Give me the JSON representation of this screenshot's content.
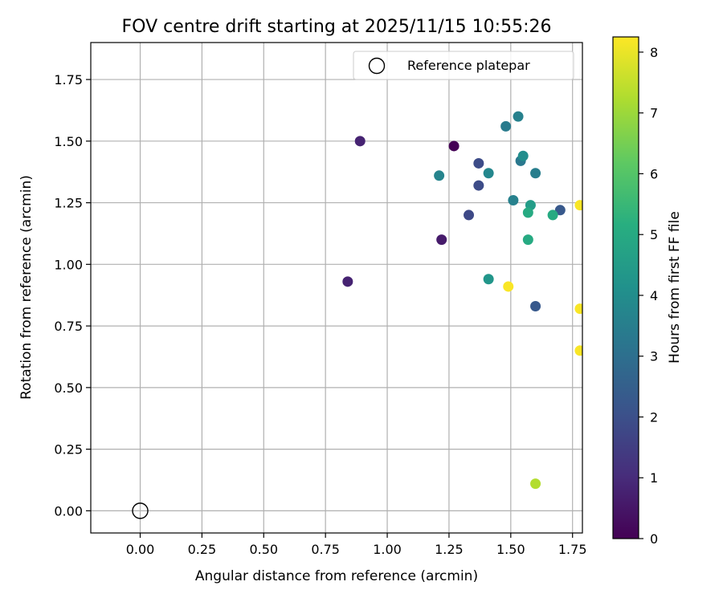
{
  "chart_data": {
    "type": "scatter",
    "title": "FOV centre drift starting at 2025/11/15 10:55:26",
    "xlabel": "Angular distance from reference (arcmin)",
    "ylabel": "Rotation from reference (arcmin)",
    "xlim": [
      -0.2,
      1.79
    ],
    "ylim": [
      -0.09,
      1.9
    ],
    "xticks": [
      "0.00",
      "0.25",
      "0.50",
      "0.75",
      "1.00",
      "1.25",
      "1.50",
      "1.75"
    ],
    "xtick_values": [
      0,
      0.25,
      0.5,
      0.75,
      1.0,
      1.25,
      1.5,
      1.75
    ],
    "yticks": [
      "0.00",
      "0.25",
      "0.50",
      "0.75",
      "1.00",
      "1.25",
      "1.50",
      "1.75"
    ],
    "ytick_values": [
      0,
      0.25,
      0.5,
      0.75,
      1.0,
      1.25,
      1.5,
      1.75
    ],
    "grid": true,
    "legend": {
      "position": "top-right",
      "entries": [
        "Reference platepar"
      ]
    },
    "reference_point": {
      "x": 0.0,
      "y": 0.0
    },
    "colorbar": {
      "label": "Hours from first FF file",
      "min": 0,
      "max": 8.25,
      "ticks": [
        "0",
        "1",
        "2",
        "3",
        "4",
        "5",
        "6",
        "7",
        "8"
      ],
      "tick_values": [
        0,
        1,
        2,
        3,
        4,
        5,
        6,
        7,
        8
      ],
      "colormap": "viridis"
    },
    "points": [
      {
        "x": 1.27,
        "y": 1.48,
        "hours": 0.0
      },
      {
        "x": 0.89,
        "y": 1.5,
        "hours": 0.8
      },
      {
        "x": 0.84,
        "y": 0.93,
        "hours": 0.8
      },
      {
        "x": 1.22,
        "y": 1.1,
        "hours": 0.6
      },
      {
        "x": 1.33,
        "y": 1.2,
        "hours": 1.8
      },
      {
        "x": 1.37,
        "y": 1.32,
        "hours": 1.9
      },
      {
        "x": 1.37,
        "y": 1.41,
        "hours": 1.9
      },
      {
        "x": 1.6,
        "y": 0.83,
        "hours": 2.3
      },
      {
        "x": 1.7,
        "y": 1.22,
        "hours": 2.3
      },
      {
        "x": 1.21,
        "y": 1.36,
        "hours": 3.7
      },
      {
        "x": 1.41,
        "y": 1.37,
        "hours": 3.8
      },
      {
        "x": 1.48,
        "y": 1.56,
        "hours": 3.4
      },
      {
        "x": 1.53,
        "y": 1.6,
        "hours": 3.6
      },
      {
        "x": 1.54,
        "y": 1.42,
        "hours": 3.3
      },
      {
        "x": 1.55,
        "y": 1.44,
        "hours": 4.0
      },
      {
        "x": 1.51,
        "y": 1.26,
        "hours": 3.6
      },
      {
        "x": 1.6,
        "y": 1.37,
        "hours": 3.5
      },
      {
        "x": 1.58,
        "y": 1.24,
        "hours": 4.5
      },
      {
        "x": 1.57,
        "y": 1.21,
        "hours": 5.0
      },
      {
        "x": 1.67,
        "y": 1.2,
        "hours": 5.0
      },
      {
        "x": 1.57,
        "y": 1.1,
        "hours": 5.0
      },
      {
        "x": 1.41,
        "y": 0.94,
        "hours": 4.3
      },
      {
        "x": 1.49,
        "y": 0.91,
        "hours": 8.2
      },
      {
        "x": 1.6,
        "y": 0.11,
        "hours": 7.3
      },
      {
        "x": 1.78,
        "y": 1.24,
        "hours": 8.2
      },
      {
        "x": 1.78,
        "y": 0.82,
        "hours": 8.2
      },
      {
        "x": 1.78,
        "y": 0.65,
        "hours": 8.2
      }
    ]
  }
}
